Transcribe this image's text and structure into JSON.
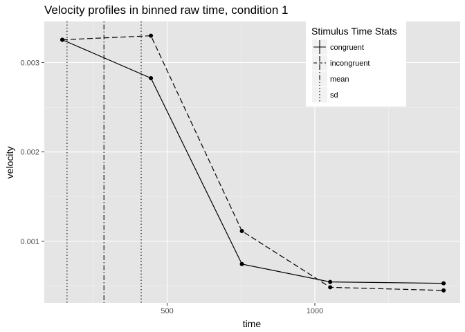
{
  "chart_data": {
    "type": "line",
    "title": "Velocity profiles in binned raw time, condition 1",
    "xlabel": "time",
    "ylabel": "velocity",
    "xlim": [
      84,
      1492
    ],
    "ylim": [
      0.00031,
      0.00346
    ],
    "x_ticks": [
      500,
      1000
    ],
    "x_tick_labels": [
      "500",
      "1000"
    ],
    "x_minor_ticks": [
      250,
      750,
      1250
    ],
    "y_ticks": [
      0.001,
      0.002,
      0.003
    ],
    "y_tick_labels": [
      "0.001",
      "0.002",
      "0.003"
    ],
    "y_minor_ticks": [
      0.0005,
      0.0015,
      0.0025
    ],
    "grid": true,
    "legend_placement": "top-right",
    "legend_title": "Stimulus Time Stats",
    "series": [
      {
        "name": "congruent",
        "dash": "solid",
        "x": [
          145,
          445,
          753,
          1052,
          1436
        ],
        "y": [
          0.003255,
          0.002825,
          0.000745,
          0.000545,
          0.00053
        ]
      },
      {
        "name": "incongruent",
        "dash": "dashed",
        "x": [
          145,
          445,
          753,
          1052,
          1436
        ],
        "y": [
          0.003255,
          0.0033,
          0.001115,
          0.000485,
          0.00045
        ]
      }
    ],
    "vlines": [
      {
        "name": "mean",
        "dash": "dotdash",
        "x": [
          286
        ]
      },
      {
        "name": "sd",
        "dash": "dotted",
        "x": [
          161,
          412
        ]
      }
    ],
    "colors": {
      "panel": "#e5e5e5",
      "grid": "#ffffff",
      "line": "#000000",
      "tick_text": "#4d4d4d"
    }
  }
}
